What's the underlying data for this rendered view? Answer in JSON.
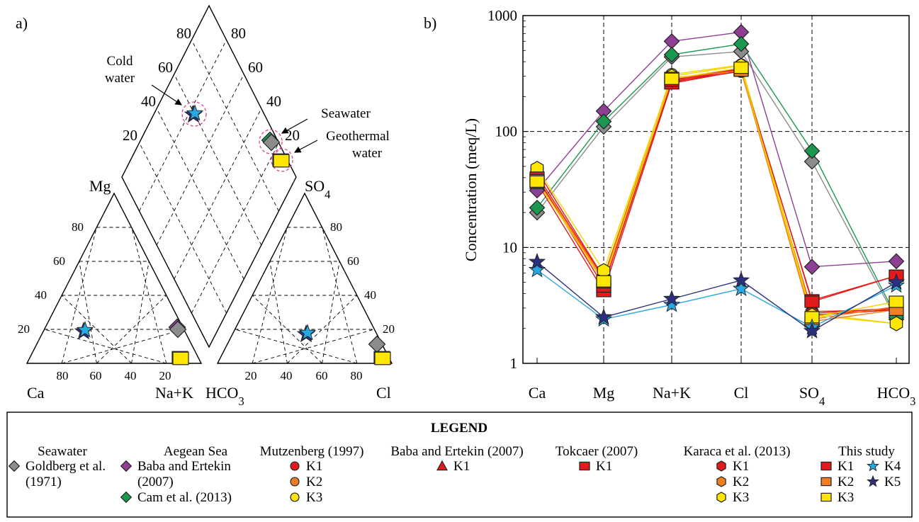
{
  "panels": {
    "a": "a)",
    "b": "b)"
  },
  "colors": {
    "seawater_goldberg": "#8c8c8c",
    "aegean_baba": "#8e3f94",
    "aegean_cam": "#1a9850",
    "mutz_K1": "#e31a1c",
    "mutz_K2": "#f07f23",
    "mutz_K3": "#ffe600",
    "baba_K1": "#e31a1c",
    "tokcaer_K1": "#e31a1c",
    "karaca_K1": "#e31a1c",
    "karaca_K2": "#f07f23",
    "karaca_K3": "#ffe600",
    "this_K1": "#e31a1c",
    "this_K2": "#f07f23",
    "this_K3": "#ffe600",
    "this_K4": "#29a8e0",
    "this_K5": "#2b2f7f"
  },
  "chart_data": [
    {
      "type": "scatter",
      "subtype": "piper-diagram",
      "labels": {
        "mg": "Mg",
        "so4": "SO4",
        "ca": "Ca",
        "nak": "Na+K",
        "hco3": "HCO3",
        "cl": "Cl",
        "diamond_ticks_left": [
          "80",
          "60",
          "40",
          "20"
        ],
        "diamond_ticks_right": [
          "80",
          "60",
          "40",
          "20"
        ],
        "cation_ticks_left": [
          "80",
          "60",
          "40",
          "20"
        ],
        "cation_ticks_bottom": [
          "80",
          "60",
          "40",
          "20"
        ],
        "anion_ticks_right": [
          "80",
          "60",
          "40",
          "20"
        ],
        "anion_ticks_bottom": [
          "20",
          "40",
          "60",
          "80"
        ]
      },
      "annotations": {
        "cold_water": [
          "Cold",
          "water"
        ],
        "seawater": "Seawater",
        "geothermal": [
          "Geothermal",
          "water"
        ]
      },
      "groups": [
        {
          "name": "Cold water",
          "cation": {
            "Mg": 20,
            "NaK": 13
          },
          "anion": {
            "SO4": 18,
            "Cl": 49
          }
        },
        {
          "name": "Seawater",
          "cation": {
            "Mg": 20,
            "NaK": 69
          },
          "anion": {
            "SO4": 10,
            "Cl": 89
          }
        },
        {
          "name": "Geothermal water",
          "cation": {
            "Mg": 1,
            "NaK": 84
          },
          "anion": {
            "SO4": 1,
            "Cl": 98
          }
        }
      ]
    },
    {
      "type": "line",
      "scale": "log",
      "ylabel": "Concentration (meq/L)",
      "ylim": [
        1,
        1000
      ],
      "yticks": [
        "1",
        "10",
        "100",
        "1000"
      ],
      "categories": [
        "Ca",
        "Mg",
        "Na+K",
        "Cl",
        "SO4",
        "HCO3"
      ],
      "series": [
        {
          "name": "Goldberg et al. (1971)",
          "colorKey": "seawater_goldberg",
          "marker": "diamond",
          "values": [
            20,
            110,
            440,
            490,
            55,
            2.4
          ]
        },
        {
          "name": "Baba and Ertekin (2007)",
          "colorKey": "aegean_baba",
          "marker": "diamond",
          "values": [
            31,
            150,
            600,
            720,
            6.8,
            7.6
          ]
        },
        {
          "name": "Cam et al. (2013)",
          "colorKey": "aegean_cam",
          "marker": "diamond",
          "values": [
            22,
            122,
            460,
            570,
            68,
            2.5
          ]
        },
        {
          "name": "Mutzenberg K1",
          "colorKey": "mutz_K1",
          "marker": "circle",
          "values": [
            40,
            5.0,
            270,
            330,
            2.8,
            2.9
          ]
        },
        {
          "name": "Mutzenberg K2",
          "colorKey": "mutz_K2",
          "marker": "circle",
          "values": [
            38,
            5.2,
            275,
            340,
            2.6,
            3.0
          ]
        },
        {
          "name": "Mutzenberg K3",
          "colorKey": "mutz_K3",
          "marker": "circle",
          "values": [
            37,
            5.6,
            310,
            375,
            2.7,
            2.2
          ]
        },
        {
          "name": "Baba and Ertekin K1",
          "colorKey": "baba_K1",
          "marker": "triangle",
          "values": [
            42,
            5.4,
            265,
            345,
            2.6,
            2.9
          ]
        },
        {
          "name": "Tokcaer K1",
          "colorKey": "tokcaer_K1",
          "marker": "square",
          "values": [
            36,
            4.2,
            260,
            335,
            3.5,
            5.7
          ]
        },
        {
          "name": "Karaca K1",
          "colorKey": "karaca_K1",
          "marker": "hexagon",
          "values": [
            46,
            5.5,
            280,
            350,
            2.7,
            3.0
          ]
        },
        {
          "name": "Karaca K2",
          "colorKey": "karaca_K2",
          "marker": "hexagon",
          "values": [
            40,
            5.3,
            285,
            340,
            2.4,
            3.1
          ]
        },
        {
          "name": "Karaca K3",
          "colorKey": "karaca_K3",
          "marker": "hexagon",
          "values": [
            48,
            6.3,
            300,
            370,
            2.6,
            2.2
          ]
        },
        {
          "name": "This study K1",
          "colorKey": "this_K1",
          "marker": "square",
          "values": [
            40,
            4.6,
            275,
            345,
            3.4,
            5.7
          ]
        },
        {
          "name": "This study K2",
          "colorKey": "this_K2",
          "marker": "square",
          "values": [
            38,
            5.0,
            290,
            335,
            2.3,
            2.9
          ]
        },
        {
          "name": "This study K3",
          "colorKey": "this_K3",
          "marker": "square",
          "values": [
            37,
            5.1,
            285,
            355,
            2.5,
            3.4
          ]
        },
        {
          "name": "This study K4",
          "colorKey": "this_K4",
          "marker": "star",
          "values": [
            6.4,
            2.4,
            3.2,
            4.4,
            2.05,
            4.7
          ]
        },
        {
          "name": "This study K5",
          "colorKey": "this_K5",
          "marker": "star",
          "values": [
            7.5,
            2.5,
            3.6,
            5.2,
            1.9,
            5.0
          ]
        }
      ]
    }
  ],
  "legend": {
    "title": "LEGEND",
    "columns": [
      {
        "heading": "Seawater",
        "items": [
          {
            "marker": "diamond",
            "colorKey": "seawater_goldberg",
            "label": [
              "Goldberg et al.",
              "(1971)"
            ]
          }
        ]
      },
      {
        "heading": "Aegean Sea",
        "items": [
          {
            "marker": "diamond",
            "colorKey": "aegean_baba",
            "label": [
              "Baba and Ertekin",
              "(2007)"
            ]
          },
          {
            "marker": "diamond",
            "colorKey": "aegean_cam",
            "label": [
              "Cam et al. (2013)"
            ]
          }
        ]
      },
      {
        "heading": "Mutzenberg (1997)",
        "items": [
          {
            "marker": "circle",
            "colorKey": "mutz_K1",
            "label": [
              "K1"
            ]
          },
          {
            "marker": "circle",
            "colorKey": "mutz_K2",
            "label": [
              "K2"
            ]
          },
          {
            "marker": "circle",
            "colorKey": "mutz_K3",
            "label": [
              "K3"
            ]
          }
        ]
      },
      {
        "heading": "Baba and Ertekin (2007)",
        "items": [
          {
            "marker": "triangle",
            "colorKey": "baba_K1",
            "label": [
              "K1"
            ]
          }
        ]
      },
      {
        "heading": "Tokcaer (2007)",
        "items": [
          {
            "marker": "square",
            "colorKey": "tokcaer_K1",
            "label": [
              "K1"
            ]
          }
        ]
      },
      {
        "heading": "Karaca et al. (2013)",
        "items": [
          {
            "marker": "hexagon",
            "colorKey": "karaca_K1",
            "label": [
              "K1"
            ]
          },
          {
            "marker": "hexagon",
            "colorKey": "karaca_K2",
            "label": [
              "K2"
            ]
          },
          {
            "marker": "hexagon",
            "colorKey": "karaca_K3",
            "label": [
              "K3"
            ]
          }
        ]
      },
      {
        "heading": "This study",
        "items": [
          {
            "marker": "square",
            "colorKey": "this_K1",
            "label": [
              "K1"
            ]
          },
          {
            "marker": "square",
            "colorKey": "this_K2",
            "label": [
              "K2"
            ]
          },
          {
            "marker": "square",
            "colorKey": "this_K3",
            "label": [
              "K3"
            ]
          },
          {
            "marker": "star",
            "colorKey": "this_K4",
            "label": [
              "K4"
            ]
          },
          {
            "marker": "star",
            "colorKey": "this_K5",
            "label": [
              "K5"
            ]
          }
        ]
      }
    ]
  }
}
